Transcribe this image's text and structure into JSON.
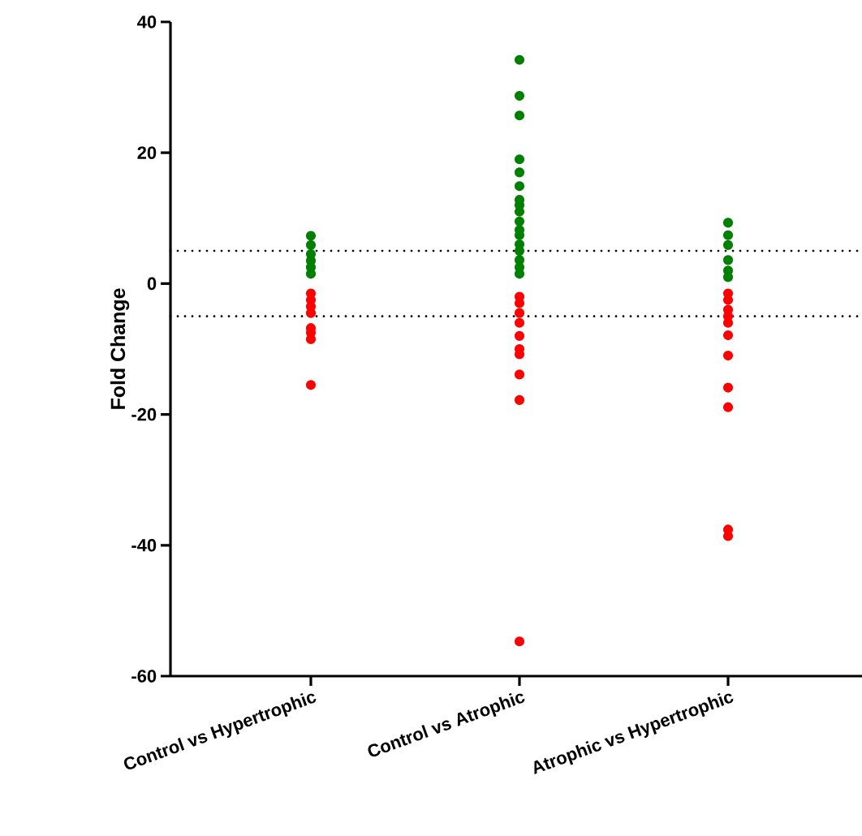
{
  "chart_data": {
    "type": "scatter",
    "ylabel": "Fold Change",
    "categories": [
      "Control vs Hypertrophic",
      "Control vs Atrophic",
      "Atrophic vs Hypertrophic"
    ],
    "series": [
      {
        "color": "#008000",
        "x": [
          "Control vs Hypertrophic",
          "Control vs Hypertrophic",
          "Control vs Hypertrophic",
          "Control vs Hypertrophic",
          "Control vs Hypertrophic",
          "Control vs Hypertrophic",
          "Control vs Atrophic",
          "Control vs Atrophic",
          "Control vs Atrophic",
          "Control vs Atrophic",
          "Control vs Atrophic",
          "Control vs Atrophic",
          "Control vs Atrophic",
          "Control vs Atrophic",
          "Control vs Atrophic",
          "Control vs Atrophic",
          "Control vs Atrophic",
          "Control vs Atrophic",
          "Control vs Atrophic",
          "Control vs Atrophic",
          "Control vs Atrophic",
          "Control vs Atrophic",
          "Control vs Atrophic",
          "Atrophic vs Hypertrophic",
          "Atrophic vs Hypertrophic",
          "Atrophic vs Hypertrophic",
          "Atrophic vs Hypertrophic",
          "Atrophic vs Hypertrophic",
          "Atrophic vs Hypertrophic"
        ],
        "values": [
          7.3,
          5.9,
          4.5,
          3.5,
          2.5,
          1.5,
          34.2,
          28.7,
          25.7,
          19.0,
          17.0,
          14.9,
          12.8,
          12.0,
          11.0,
          9.5,
          8.2,
          7.4,
          6.0,
          5.0,
          3.6,
          2.5,
          1.5,
          9.3,
          7.4,
          5.9,
          3.6,
          2.0,
          1.0
        ]
      },
      {
        "color": "#ff0000",
        "x": [
          "Control vs Hypertrophic",
          "Control vs Hypertrophic",
          "Control vs Hypertrophic",
          "Control vs Hypertrophic",
          "Control vs Hypertrophic",
          "Control vs Hypertrophic",
          "Control vs Hypertrophic",
          "Control vs Hypertrophic",
          "Control vs Atrophic",
          "Control vs Atrophic",
          "Control vs Atrophic",
          "Control vs Atrophic",
          "Control vs Atrophic",
          "Control vs Atrophic",
          "Control vs Atrophic",
          "Control vs Atrophic",
          "Control vs Atrophic",
          "Control vs Atrophic",
          "Atrophic vs Hypertrophic",
          "Atrophic vs Hypertrophic",
          "Atrophic vs Hypertrophic",
          "Atrophic vs Hypertrophic",
          "Atrophic vs Hypertrophic",
          "Atrophic vs Hypertrophic",
          "Atrophic vs Hypertrophic",
          "Atrophic vs Hypertrophic",
          "Atrophic vs Hypertrophic",
          "Atrophic vs Hypertrophic",
          "Atrophic vs Hypertrophic",
          "Atrophic vs Hypertrophic"
        ],
        "values": [
          -1.5,
          -2.5,
          -3.5,
          -4.5,
          -6.8,
          -7.5,
          -8.5,
          -15.5,
          -2.0,
          -3.0,
          -4.5,
          -6.0,
          -8.0,
          -10.0,
          -10.8,
          -13.9,
          -17.8,
          -54.7,
          -1.5,
          -2.5,
          -4.0,
          -5.0,
          -6.0,
          -7.9,
          null,
          -11.0,
          -15.9,
          -18.9,
          -37.6,
          -38.6
        ]
      }
    ],
    "ylim": [
      -60,
      40
    ],
    "yticks": [
      -60,
      -40,
      -20,
      0,
      20,
      40
    ],
    "ref_lines": [
      {
        "axis": "y",
        "value": 5,
        "line_style": "dotted",
        "color": "#000000"
      },
      {
        "axis": "y",
        "value": -5,
        "line_style": "dotted",
        "color": "#000000"
      }
    ],
    "marker": "circle"
  }
}
